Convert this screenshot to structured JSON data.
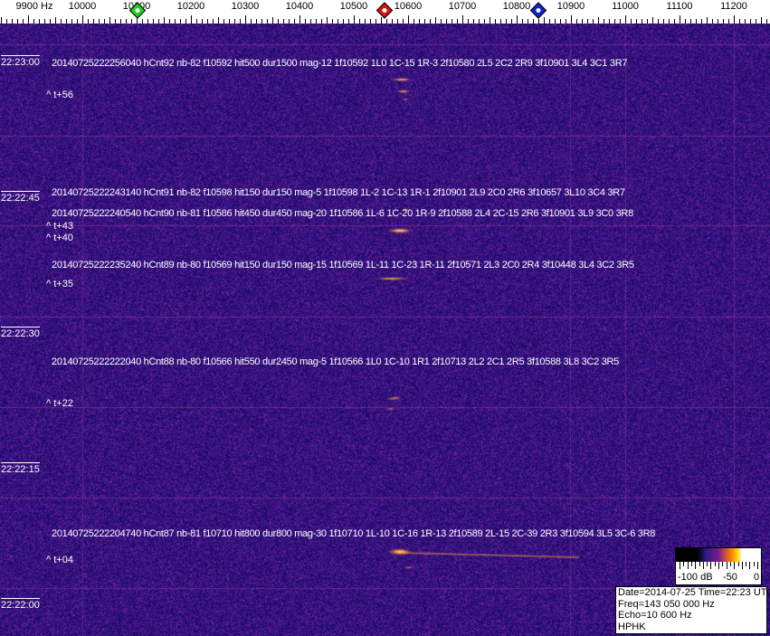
{
  "chart_data": {
    "type": "heatmap",
    "subtype": "spectrogram waterfall",
    "x_unit": "Hz",
    "x_ticks": [
      "9900 Hz",
      "10000",
      "10100",
      "10200",
      "10300",
      "10400",
      "10500",
      "10600",
      "10700",
      "10800",
      "10900",
      "11000",
      "11100",
      "11200"
    ],
    "xlim": [
      9900,
      11260
    ],
    "time_labels": [
      "22:23:00",
      "22:22:45",
      "22:22:30",
      "22:22:15",
      "22:22:00"
    ],
    "colorbar": {
      "labels": [
        "-100 dB",
        "-50",
        "0"
      ],
      "range_db": [
        -100,
        0
      ]
    },
    "colors": {
      "background": "#2a1a80",
      "echo": "#ffd040",
      "line": "#8a3a9a"
    },
    "markers": [
      {
        "icon": "green-diamond-marker-icon",
        "color": "#22cc22"
      },
      {
        "icon": "red-diamond-marker-icon",
        "color": "#dd1111"
      },
      {
        "icon": "blue-diamond-marker-icon",
        "color": "#1122cc"
      }
    ],
    "events": [
      {
        "text": "20140725222256040 hCnt92 nb-82 f10592 hit500 dur1500 mag-12 1f10592 1L0 1C-15 1R-3 2f10580 2L5 2C2 2R9 3f10901 3L4 3C1 3R7",
        "offset": "^ t+56"
      },
      {
        "text": "20140725222243140 hCnt91 nb-82 f10598 hit150 dur150 mag-5 1f10598 1L-2 1C-13 1R-1 2f10901 2L9 2C0 2R6 3f10657 3L10 3C4 3R7",
        "offset": "^ t+43"
      },
      {
        "text": "20140725222240540 hCnt90 nb-81 f10586 hit450 dur450 mag-20 1f10586 1L-6 1C-20 1R-9 2f10588 2L4 2C-15 2R6 3f10901 3L9 3C0 3R8",
        "offset": "^ t+40"
      },
      {
        "text": "20140725222235240 hCnt89 nb-80 f10569 hit150 dur150 mag-15 1f10569 1L-11 1C-23 1R-11 2f10571 2L3 2C0 2R4 3f10448 3L4 3C2 3R5",
        "offset": "^ t+35"
      },
      {
        "text": "20140725222222040 hCnt88 nb-80 f10566 hit550 dur2450 mag-5 1f10566 1L0 1C-10 1R1 2f10713 2L2 2C1 2R5 3f10588 3L8 3C2 3R5",
        "offset": "^ t+22"
      },
      {
        "text": "20140725222204740 hCnt87 nb-81 f10710 hit800 dur800 mag-30 1f10710 1L-10 1C-16 1R-13 2f10589 2L-15 2C-39 2R3 3f10594 3L5 3C-6 3R8",
        "offset": "^ t+04"
      }
    ]
  },
  "info": {
    "date_time": "Date=2014-07-25 Time=22:23 UTC",
    "freq": "Freq=143 050 000 Hz",
    "echo": "Echo=10 600 Hz",
    "station": "HPHK"
  }
}
